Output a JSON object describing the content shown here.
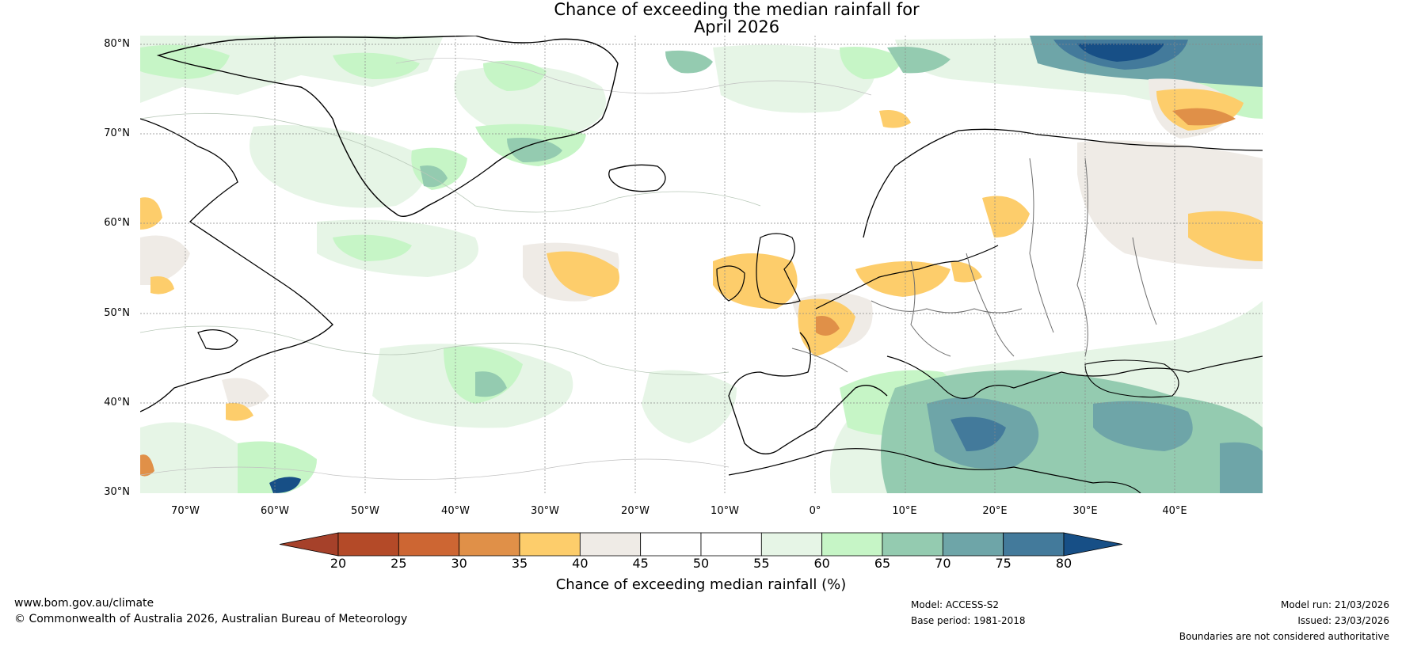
{
  "title": {
    "line1": "Chance of exceeding the median rainfall for",
    "line2": "April 2026"
  },
  "map": {
    "region": "North Atlantic and Europe",
    "lat_labels": [
      "80°N",
      "70°N",
      "60°N",
      "50°N",
      "40°N",
      "30°N"
    ],
    "lon_labels": [
      "70°W",
      "60°W",
      "50°W",
      "40°W",
      "30°W",
      "20°W",
      "10°W",
      "0°",
      "10°E",
      "20°E",
      "30°E",
      "40°E"
    ]
  },
  "legend": {
    "ticks": [
      "20",
      "25",
      "30",
      "35",
      "40",
      "45",
      "50",
      "55",
      "60",
      "65",
      "70",
      "75",
      "80"
    ],
    "colors": [
      "#a6412a",
      "#b44a28",
      "#cd6633",
      "#e09048",
      "#fdcd6b",
      "#efebe6",
      "#ffffff",
      "#ffffff",
      "#e6f5e6",
      "#c6f5c6",
      "#94cbb0",
      "#6ea5a8",
      "#437a9b",
      "#174f86"
    ],
    "title": "Chance of exceeding median rainfall (%)"
  },
  "footer": {
    "url": "www.bom.gov.au/climate",
    "copyright": "© Commonwealth of Australia 2026, Australian Bureau of Meteorology",
    "model": "Model: ACCESS-S2",
    "base_period": "Base period: 1981-2018",
    "model_run": "Model run: 21/03/2026",
    "issued": "Issued: 23/03/2026",
    "disclaimer": "Boundaries are not considered authoritative"
  }
}
